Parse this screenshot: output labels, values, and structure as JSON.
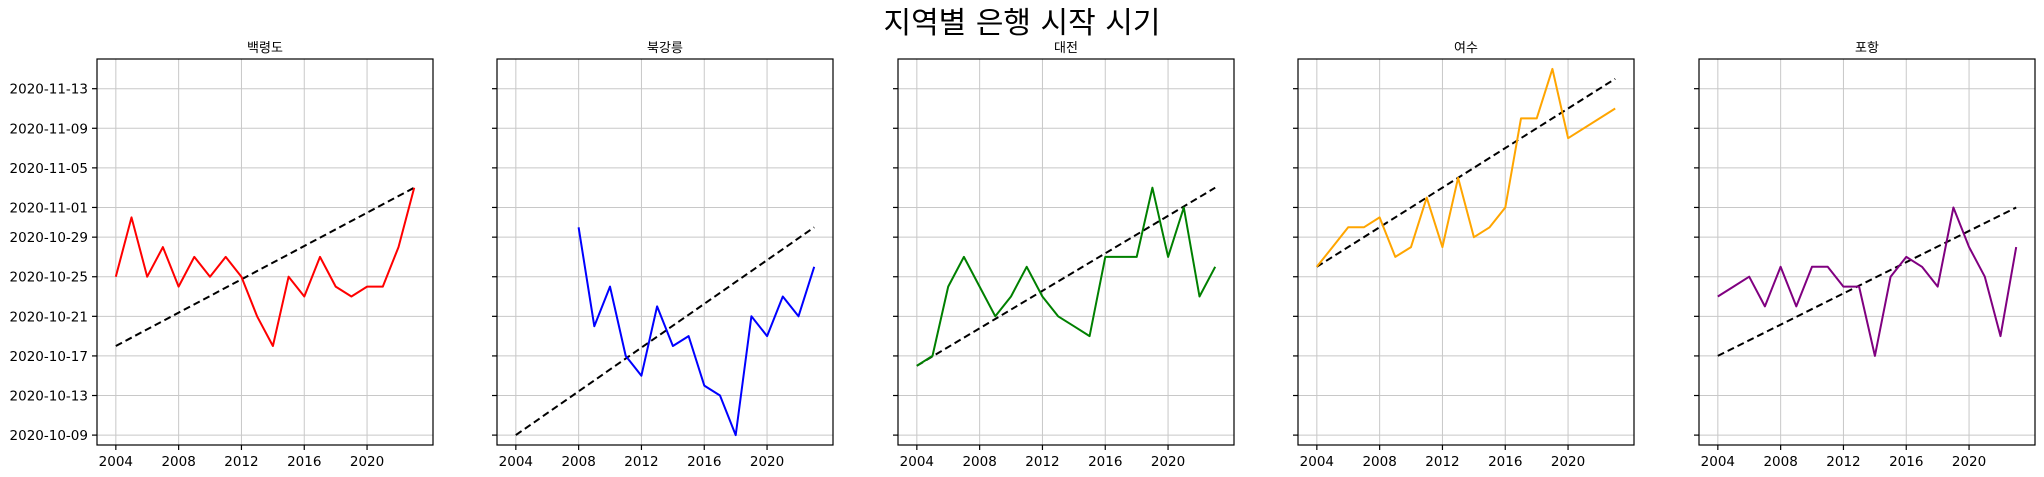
{
  "chart_data": {
    "type": "line",
    "title": "지역별 은행 시작 시기",
    "base_date": "2020-10-09",
    "ylim": [
      "2020-10-08",
      "2020-11-16"
    ],
    "xlim": [
      2002.8,
      2024.2
    ],
    "xticks": [
      2004,
      2008,
      2012,
      2016,
      2020
    ],
    "yticks": [
      "2020-10-09",
      "2020-10-13",
      "2020-10-17",
      "2020-10-21",
      "2020-10-25",
      "2020-10-29",
      "2020-11-01",
      "2020-11-05",
      "2020-11-09",
      "2020-11-13"
    ],
    "grid": true,
    "trend_style": "black dashed",
    "panels": [
      {
        "title": "백령도",
        "color": "#ff0000",
        "x": [
          2004,
          2005,
          2006,
          2007,
          2008,
          2009,
          2010,
          2011,
          2012,
          2013,
          2014,
          2015,
          2016,
          2017,
          2018,
          2019,
          2020,
          2021,
          2022,
          2023
        ],
        "y": [
          "2020-10-25",
          "2020-10-31",
          "2020-10-25",
          "2020-10-28",
          "2020-10-24",
          "2020-10-27",
          "2020-10-25",
          "2020-10-27",
          "2020-10-25",
          "2020-10-21",
          "2020-10-18",
          "2020-10-25",
          "2020-10-23",
          "2020-10-27",
          "2020-10-24",
          "2020-10-23",
          "2020-10-24",
          "2020-10-24",
          "2020-10-28",
          "2020-11-03"
        ],
        "trend": {
          "x": [
            2004,
            2023
          ],
          "y": [
            "2020-10-18",
            "2020-11-03"
          ]
        }
      },
      {
        "title": "북강릉",
        "color": "#0000ff",
        "x": [
          2008,
          2009,
          2010,
          2011,
          2012,
          2013,
          2014,
          2015,
          2016,
          2017,
          2018,
          2019,
          2020,
          2021,
          2022,
          2023
        ],
        "y": [
          "2020-10-30",
          "2020-10-20",
          "2020-10-24",
          "2020-10-17",
          "2020-10-15",
          "2020-10-22",
          "2020-10-18",
          "2020-10-19",
          "2020-10-14",
          "2020-10-13",
          "2020-10-09",
          "2020-10-21",
          "2020-10-19",
          "2020-10-23",
          "2020-10-21",
          "2020-10-26"
        ],
        "trend": {
          "x": [
            2004,
            2023
          ],
          "y": [
            "2020-10-09",
            "2020-10-30"
          ]
        }
      },
      {
        "title": "대전",
        "color": "#008000",
        "x": [
          2004,
          2005,
          2006,
          2007,
          2008,
          2009,
          2010,
          2011,
          2012,
          2013,
          2014,
          2015,
          2016,
          2017,
          2018,
          2019,
          2020,
          2021,
          2022,
          2023
        ],
        "y": [
          "2020-10-16",
          "2020-10-17",
          "2020-10-24",
          "2020-10-27",
          "2020-10-24",
          "2020-10-21",
          "2020-10-23",
          "2020-10-26",
          "2020-10-23",
          "2020-10-21",
          "2020-10-20",
          "2020-10-19",
          "2020-10-27",
          "2020-10-27",
          "2020-10-27",
          "2020-11-03",
          "2020-10-27",
          "2020-11-01",
          "2020-10-23",
          "2020-10-26"
        ],
        "trend": {
          "x": [
            2004,
            2023
          ],
          "y": [
            "2020-10-16",
            "2020-11-03"
          ]
        }
      },
      {
        "title": "여수",
        "color": "#ffa500",
        "x": [
          2004,
          2005,
          2006,
          2007,
          2008,
          2009,
          2010,
          2011,
          2012,
          2013,
          2014,
          2015,
          2016,
          2017,
          2018,
          2019,
          2020,
          2023
        ],
        "y": [
          "2020-10-26",
          "2020-10-28",
          "2020-10-30",
          "2020-10-30",
          "2020-10-31",
          "2020-10-27",
          "2020-10-28",
          "2020-11-02",
          "2020-10-28",
          "2020-11-04",
          "2020-10-29",
          "2020-10-30",
          "2020-11-01",
          "2020-11-10",
          "2020-11-10",
          "2020-11-15",
          "2020-11-08",
          "2020-11-11"
        ],
        "trend": {
          "x": [
            2004,
            2023
          ],
          "y": [
            "2020-10-26",
            "2020-11-14"
          ]
        }
      },
      {
        "title": "포항",
        "color": "#800080",
        "x": [
          2004,
          2005,
          2006,
          2007,
          2008,
          2009,
          2010,
          2011,
          2012,
          2013,
          2014,
          2015,
          2016,
          2017,
          2018,
          2019,
          2020,
          2021,
          2022,
          2023
        ],
        "y": [
          "2020-10-23",
          "2020-10-24",
          "2020-10-25",
          "2020-10-22",
          "2020-10-26",
          "2020-10-22",
          "2020-10-26",
          "2020-10-26",
          "2020-10-24",
          "2020-10-24",
          "2020-10-17",
          "2020-10-25",
          "2020-10-27",
          "2020-10-26",
          "2020-10-24",
          "2020-11-01",
          "2020-10-28",
          "2020-10-25",
          "2020-10-19",
          "2020-10-28"
        ],
        "trend": {
          "x": [
            2004,
            2023
          ],
          "y": [
            "2020-10-17",
            "2020-11-01"
          ]
        }
      }
    ]
  }
}
